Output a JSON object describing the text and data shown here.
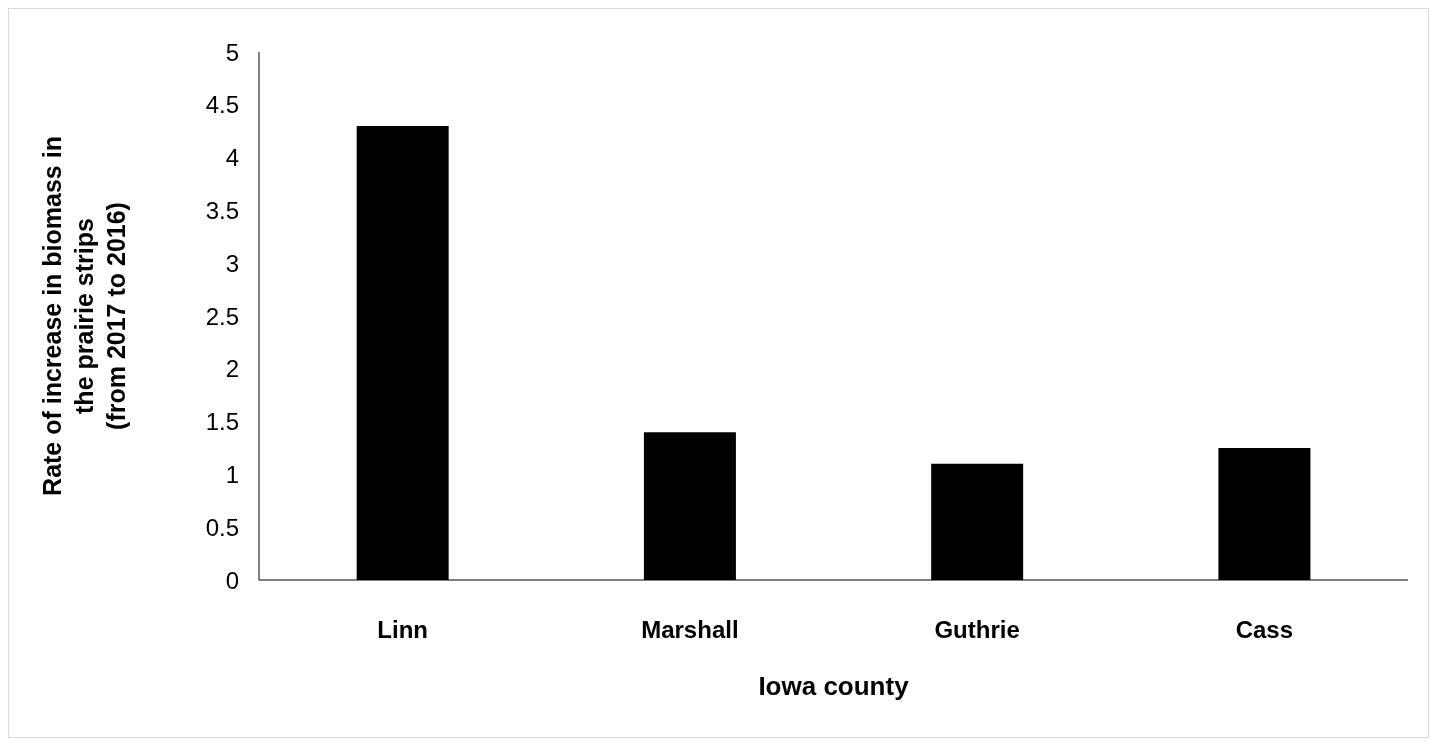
{
  "chart_data": {
    "type": "bar",
    "xlabel": "Iowa county",
    "ylabel": "Rate of increase in biomass in\nthe prairie strips\n(from 2017 to 2016)",
    "categories": [
      "Linn",
      "Marshall",
      "Guthrie",
      "Cass"
    ],
    "values": [
      4.3,
      1.4,
      1.1,
      1.25
    ],
    "color": "#000000",
    "ylim": [
      0,
      5
    ],
    "yticks": [
      0,
      0.5,
      1,
      1.5,
      2,
      2.5,
      3,
      3.5,
      4,
      4.5,
      5
    ],
    "grid": false,
    "legend": false
  }
}
